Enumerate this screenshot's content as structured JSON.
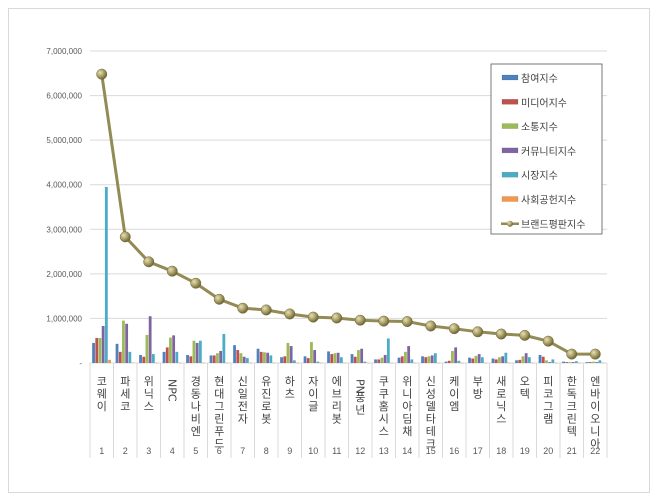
{
  "chart_data": {
    "type": "bar+line",
    "title": "",
    "xlabel": "",
    "ylabel": "",
    "ylim": [
      0,
      7000000
    ],
    "y_ticks": [
      "-",
      "1,000,000",
      "2,000,000",
      "3,000,000",
      "4,000,000",
      "5,000,000",
      "6,000,000",
      "7,000,000"
    ],
    "grid": true,
    "legend_position": "top-right inside",
    "categories": [
      "코웨이",
      "파세코",
      "위닉스",
      "NPC",
      "경동나비엔",
      "현대그린푸드",
      "신일전자",
      "유진로봇",
      "하츠",
      "자이글",
      "에브리봇",
      "PN풍년",
      "쿠쿠홈시스",
      "위니아딤채",
      "신성델타테크",
      "케이엠",
      "부방",
      "새로닉스",
      "오텍",
      "피코그램",
      "한독크린텍",
      "엔바이오니아"
    ],
    "rank_numbers": [
      "1",
      "2",
      "3",
      "4",
      "5",
      "6",
      "7",
      "8",
      "9",
      "10",
      "11",
      "12",
      "13",
      "14",
      "15",
      "16",
      "17",
      "18",
      "19",
      "20",
      "21",
      "22"
    ],
    "series": [
      {
        "name": "참여지수",
        "type": "bar",
        "color": "#4f81bd",
        "values": [
          450000,
          430000,
          180000,
          250000,
          180000,
          170000,
          400000,
          320000,
          130000,
          150000,
          260000,
          200000,
          80000,
          120000,
          150000,
          30000,
          120000,
          100000,
          60000,
          180000,
          30000,
          20000
        ]
      },
      {
        "name": "미디어지수",
        "type": "bar",
        "color": "#c0504d",
        "values": [
          560000,
          250000,
          140000,
          350000,
          150000,
          170000,
          290000,
          250000,
          150000,
          110000,
          200000,
          140000,
          80000,
          150000,
          130000,
          50000,
          100000,
          80000,
          70000,
          140000,
          20000,
          20000
        ]
      },
      {
        "name": "소통지수",
        "type": "bar",
        "color": "#9bbb59",
        "values": [
          560000,
          950000,
          630000,
          570000,
          500000,
          220000,
          220000,
          240000,
          450000,
          470000,
          220000,
          290000,
          120000,
          250000,
          150000,
          270000,
          160000,
          130000,
          150000,
          60000,
          20000,
          30000
        ]
      },
      {
        "name": "커뮤니티지수",
        "type": "bar",
        "color": "#8064a2",
        "values": [
          830000,
          880000,
          1050000,
          620000,
          450000,
          270000,
          140000,
          230000,
          380000,
          290000,
          230000,
          320000,
          180000,
          380000,
          170000,
          350000,
          200000,
          150000,
          220000,
          20000,
          20000,
          20000
        ]
      },
      {
        "name": "시장지수",
        "type": "bar",
        "color": "#4bacc6",
        "values": [
          3950000,
          250000,
          200000,
          250000,
          500000,
          650000,
          110000,
          170000,
          60000,
          30000,
          130000,
          30000,
          550000,
          80000,
          220000,
          50000,
          130000,
          230000,
          130000,
          80000,
          40000,
          60000
        ]
      },
      {
        "name": "사회공헌지수",
        "type": "bar",
        "color": "#f79646",
        "values": [
          70000,
          10000,
          5000,
          5000,
          5000,
          5000,
          5000,
          5000,
          5000,
          5000,
          5000,
          5000,
          5000,
          5000,
          5000,
          5000,
          5000,
          5000,
          5000,
          5000,
          5000,
          5000
        ]
      },
      {
        "name": "브랜드평판지수",
        "type": "line",
        "color": "#948a54",
        "values": [
          6480000,
          2830000,
          2270000,
          2060000,
          1790000,
          1430000,
          1230000,
          1190000,
          1100000,
          1030000,
          1010000,
          960000,
          940000,
          930000,
          830000,
          770000,
          700000,
          650000,
          620000,
          490000,
          200000,
          200000
        ]
      }
    ]
  },
  "legend": {
    "items": [
      "참여지수",
      "미디어지수",
      "소통지수",
      "커뮤니티지수",
      "시장지수",
      "사회공헌지수",
      "브랜드평판지수"
    ]
  }
}
